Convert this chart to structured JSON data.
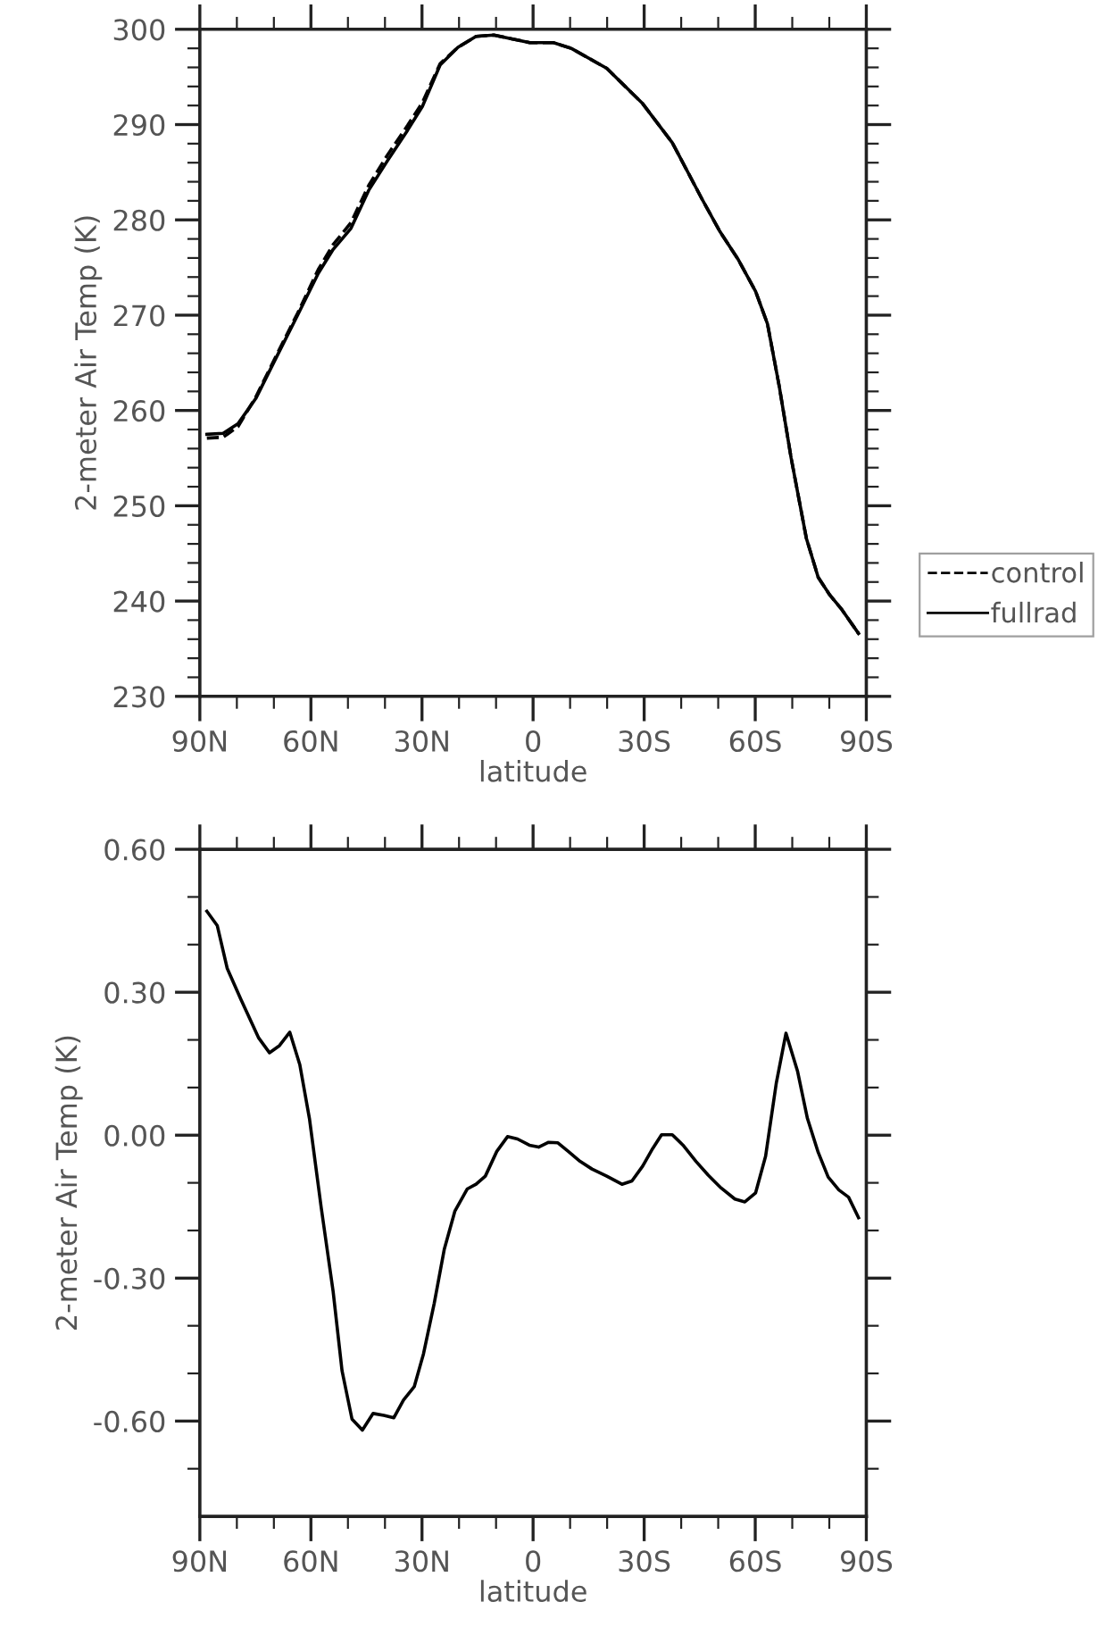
{
  "chart_data": [
    {
      "type": "line",
      "xlabel": "latitude",
      "ylabel": "2-meter Air Temp (K)",
      "xlim": [
        90,
        -90
      ],
      "ylim": [
        230,
        300
      ],
      "legend": "right",
      "xticks": [
        {
          "value": 90,
          "label": "90N"
        },
        {
          "value": 80,
          "label": null
        },
        {
          "value": 70,
          "label": null
        },
        {
          "value": 60,
          "label": "60N"
        },
        {
          "value": 50,
          "label": null
        },
        {
          "value": 40,
          "label": null
        },
        {
          "value": 30,
          "label": "30N"
        },
        {
          "value": 20,
          "label": null
        },
        {
          "value": 10,
          "label": null
        },
        {
          "value": 0,
          "label": "0"
        },
        {
          "value": -10,
          "label": null
        },
        {
          "value": -20,
          "label": null
        },
        {
          "value": -30,
          "label": "30S"
        },
        {
          "value": -40,
          "label": null
        },
        {
          "value": -50,
          "label": null
        },
        {
          "value": -60,
          "label": "60S"
        },
        {
          "value": -70,
          "label": null
        },
        {
          "value": -80,
          "label": null
        },
        {
          "value": -90,
          "label": "90S"
        }
      ],
      "yticks": [
        230,
        {
          "value": 232,
          "label": null
        },
        {
          "value": 234,
          "label": null
        },
        {
          "value": 236,
          "label": null
        },
        {
          "value": 238,
          "label": null
        },
        240,
        {
          "value": 242,
          "label": null
        },
        {
          "value": 244,
          "label": null
        },
        {
          "value": 246,
          "label": null
        },
        {
          "value": 248,
          "label": null
        },
        250,
        {
          "value": 252,
          "label": null
        },
        {
          "value": 254,
          "label": null
        },
        {
          "value": 256,
          "label": null
        },
        {
          "value": 258,
          "label": null
        },
        260,
        {
          "value": 262,
          "label": null
        },
        {
          "value": 264,
          "label": null
        },
        {
          "value": 266,
          "label": null
        },
        {
          "value": 268,
          "label": null
        },
        270,
        {
          "value": 272,
          "label": null
        },
        {
          "value": 274,
          "label": null
        },
        {
          "value": 276,
          "label": null
        },
        {
          "value": 278,
          "label": null
        },
        280,
        {
          "value": 282,
          "label": null
        },
        {
          "value": 284,
          "label": null
        },
        {
          "value": 286,
          "label": null
        },
        {
          "value": 288,
          "label": null
        },
        290,
        {
          "value": 292,
          "label": null
        },
        {
          "value": 294,
          "label": null
        },
        {
          "value": 296,
          "label": null
        },
        {
          "value": 298,
          "label": null
        },
        300
      ],
      "series": [
        {
          "name": "control",
          "color": "#000000",
          "line_style": "dashed",
          "x": [
            88.1,
            83.7,
            79.7,
            74.9,
            69.3,
            63.6,
            58.0,
            54.0,
            49.2,
            44.4,
            39.5,
            33.9,
            29.9,
            25.1,
            20.3,
            15.4,
            10.6,
            5.8,
            0.9,
            -5.5,
            -10.3,
            -19.9,
            -29.6,
            -37.6,
            -45.6,
            -50.5,
            -55.3,
            -60.1,
            -63.3,
            -66.5,
            -69.7,
            -73.8,
            -77.0,
            -80.2,
            -83.4,
            -87.9
          ],
          "values": [
            257.1,
            257.2,
            258.3,
            261.4,
            265.8,
            270.2,
            274.8,
            277.4,
            279.7,
            283.6,
            286.7,
            289.9,
            292.3,
            296.4,
            298.1,
            299.25,
            299.4,
            299.0,
            298.6,
            298.6,
            298.0,
            295.9,
            292.2,
            288.1,
            282.2,
            278.75,
            275.9,
            272.5,
            269.1,
            262.5,
            255.0,
            246.6,
            242.5,
            240.6,
            239.1,
            236.6
          ]
        },
        {
          "name": "fullrad",
          "color": "#000000",
          "line_style": "solid",
          "x": [
            88.1,
            83.7,
            79.7,
            74.9,
            69.3,
            63.6,
            58.0,
            54.0,
            49.2,
            44.4,
            39.5,
            33.9,
            29.9,
            25.1,
            20.3,
            15.4,
            10.6,
            5.8,
            0.9,
            -5.5,
            -10.3,
            -19.9,
            -29.6,
            -37.6,
            -45.6,
            -50.5,
            -55.3,
            -60.1,
            -63.3,
            -66.5,
            -69.7,
            -73.8,
            -77.0,
            -80.2,
            -83.4,
            -87.9
          ],
          "values": [
            257.5,
            257.6,
            258.6,
            261.25,
            265.6,
            270.0,
            274.4,
            276.9,
            279.1,
            283.1,
            286.1,
            289.4,
            291.9,
            296.25,
            298.1,
            299.25,
            299.4,
            299.0,
            298.6,
            298.6,
            298.0,
            295.9,
            292.2,
            288.1,
            282.2,
            278.75,
            275.9,
            272.5,
            269.1,
            262.5,
            255.0,
            246.6,
            242.5,
            240.6,
            239.1,
            236.6
          ]
        }
      ]
    },
    {
      "type": "line",
      "xlabel": "latitude",
      "ylabel": "2-meter Air Temp (K)",
      "xlim": [
        90,
        -90
      ],
      "ylim": [
        -0.8,
        0.6
      ],
      "xticks": [
        {
          "value": 90,
          "label": "90N"
        },
        {
          "value": 80,
          "label": null
        },
        {
          "value": 70,
          "label": null
        },
        {
          "value": 60,
          "label": "60N"
        },
        {
          "value": 50,
          "label": null
        },
        {
          "value": 40,
          "label": null
        },
        {
          "value": 30,
          "label": "30N"
        },
        {
          "value": 20,
          "label": null
        },
        {
          "value": 10,
          "label": null
        },
        {
          "value": 0,
          "label": "0"
        },
        {
          "value": -10,
          "label": null
        },
        {
          "value": -20,
          "label": null
        },
        {
          "value": -30,
          "label": "30S"
        },
        {
          "value": -40,
          "label": null
        },
        {
          "value": -50,
          "label": null
        },
        {
          "value": -60,
          "label": "60S"
        },
        {
          "value": -70,
          "label": null
        },
        {
          "value": -80,
          "label": null
        },
        {
          "value": -90,
          "label": "90S"
        }
      ],
      "yticks": [
        {
          "value": 0.6,
          "label": "0.60"
        },
        {
          "value": 0.5,
          "label": null
        },
        {
          "value": 0.4,
          "label": null
        },
        {
          "value": 0.3,
          "label": "0.30"
        },
        {
          "value": 0.2,
          "label": null
        },
        {
          "value": 0.1,
          "label": null
        },
        {
          "value": 0.0,
          "label": "0.00"
        },
        {
          "value": -0.1,
          "label": null
        },
        {
          "value": -0.2,
          "label": null
        },
        {
          "value": -0.3,
          "label": "-0.30"
        },
        {
          "value": -0.4,
          "label": null
        },
        {
          "value": -0.5,
          "label": null
        },
        {
          "value": -0.6,
          "label": "-0.60"
        },
        {
          "value": -0.7,
          "label": null
        }
      ],
      "series": [
        {
          "color": "#000000",
          "line_style": "solid",
          "x": [
            88.1,
            85.3,
            82.6,
            78.9,
            74.1,
            71.2,
            68.5,
            65.7,
            63.0,
            60.4,
            57.2,
            54.0,
            51.6,
            48.9,
            46.1,
            43.2,
            40.3,
            37.6,
            35.0,
            32.1,
            29.6,
            26.7,
            24.0,
            21.1,
            17.8,
            15.4,
            12.9,
            9.8,
            6.9,
            4.2,
            1.0,
            -1.5,
            -4.2,
            -6.7,
            -9.5,
            -12.7,
            -15.9,
            -19.9,
            -24.0,
            -26.7,
            -29.6,
            -32.3,
            -34.7,
            -37.6,
            -40.5,
            -44.0,
            -47.3,
            -50.8,
            -54.5,
            -57.2,
            -60.1,
            -62.8,
            -65.7,
            -68.3,
            -71.4,
            -74.1,
            -77.0,
            -79.7,
            -82.6,
            -85.2,
            -87.9
          ],
          "values": [
            0.47,
            0.44,
            0.35,
            0.285,
            0.204,
            0.173,
            0.188,
            0.216,
            0.148,
            0.035,
            -0.153,
            -0.328,
            -0.494,
            -0.596,
            -0.619,
            -0.584,
            -0.588,
            -0.593,
            -0.556,
            -0.528,
            -0.459,
            -0.353,
            -0.24,
            -0.159,
            -0.113,
            -0.103,
            -0.086,
            -0.034,
            -0.003,
            -0.008,
            -0.021,
            -0.025,
            -0.015,
            -0.016,
            -0.034,
            -0.055,
            -0.071,
            -0.086,
            -0.103,
            -0.096,
            -0.065,
            -0.028,
            0.001,
            0.001,
            -0.021,
            -0.055,
            -0.084,
            -0.111,
            -0.134,
            -0.14,
            -0.121,
            -0.044,
            0.11,
            0.214,
            0.135,
            0.035,
            -0.036,
            -0.088,
            -0.115,
            -0.13,
            -0.173
          ]
        }
      ]
    }
  ]
}
